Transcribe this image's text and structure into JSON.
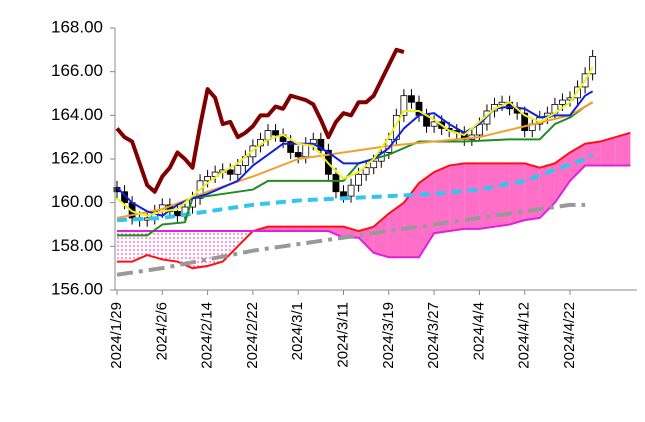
{
  "chart_data": {
    "type": "candlestick",
    "categories": [
      "2024/1/29",
      null,
      null,
      null,
      null,
      null,
      "2024/2/6",
      null,
      null,
      null,
      null,
      null,
      "2024/2/14",
      null,
      null,
      null,
      null,
      null,
      "2024/2/22",
      null,
      null,
      null,
      null,
      null,
      "2024/3/1",
      null,
      null,
      null,
      null,
      null,
      "2024/3/11",
      null,
      null,
      null,
      null,
      null,
      "2024/3/19",
      null,
      null,
      null,
      null,
      null,
      "2024/3/27",
      null,
      null,
      null,
      null,
      null,
      "2024/4/4",
      null,
      null,
      null,
      null,
      null,
      "2024/4/12",
      null,
      null,
      null,
      null,
      null,
      "2024/4/22",
      null,
      null,
      null,
      null,
      null,
      null,
      null,
      null
    ],
    "ylim": [
      156,
      168
    ],
    "yticks": [
      {
        "value": 156,
        "label": "156.00"
      },
      {
        "value": 158,
        "label": "158.00"
      },
      {
        "value": 160,
        "label": "160.00"
      },
      {
        "value": 162,
        "label": "162.00"
      },
      {
        "value": 164,
        "label": "164.00"
      },
      {
        "value": 166,
        "label": "166.00"
      },
      {
        "value": 168,
        "label": "168.00"
      }
    ],
    "grid": false,
    "candles": {
      "up_color": "#ffffff",
      "down_color": "#000000",
      "open": [
        160.7,
        160.5,
        160.0,
        159.3,
        159.2,
        159.3,
        159.6,
        159.9,
        159.6,
        159.4,
        159.8,
        160.2,
        161.0,
        161.2,
        161.4,
        161.5,
        161.3,
        161.7,
        162.1,
        162.6,
        162.9,
        163.3,
        163.1,
        162.8,
        162.3,
        162.1,
        162.7,
        162.9,
        162.4,
        161.3,
        160.5,
        160.3,
        160.8,
        161.3,
        161.6,
        161.9,
        162.3,
        162.9,
        164.0,
        164.9,
        164.6,
        164.0,
        163.5,
        163.7,
        163.4,
        163.3,
        163.2,
        162.9,
        163.1,
        163.6,
        164.2,
        164.5,
        164.6,
        164.3,
        164.1,
        163.3,
        163.6,
        163.9,
        164.1,
        164.5,
        164.7,
        164.8,
        165.3,
        165.9
      ],
      "high": [
        161.0,
        160.8,
        160.3,
        159.6,
        159.6,
        159.9,
        160.2,
        160.2,
        159.9,
        160.1,
        160.5,
        161.3,
        161.5,
        161.7,
        161.8,
        161.8,
        162.0,
        162.4,
        162.9,
        163.2,
        163.6,
        163.6,
        163.4,
        163.1,
        162.6,
        163.0,
        163.2,
        163.2,
        162.7,
        161.6,
        160.8,
        161.1,
        161.6,
        161.9,
        162.2,
        162.6,
        163.2,
        164.3,
        165.2,
        165.2,
        164.9,
        164.3,
        164.0,
        164.0,
        163.7,
        163.6,
        163.5,
        163.4,
        163.9,
        164.5,
        164.8,
        164.9,
        164.9,
        164.6,
        164.4,
        163.9,
        164.2,
        164.4,
        164.8,
        165.0,
        165.1,
        165.6,
        166.2,
        167.0
      ],
      "low": [
        160.2,
        159.7,
        159.0,
        158.9,
        158.9,
        159.0,
        159.3,
        159.3,
        159.1,
        159.1,
        159.5,
        159.9,
        160.7,
        160.9,
        161.1,
        161.0,
        161.0,
        161.4,
        161.8,
        162.3,
        162.6,
        162.8,
        162.5,
        162.0,
        161.8,
        161.8,
        162.4,
        162.1,
        161.0,
        160.2,
        160.0,
        160.0,
        160.5,
        161.0,
        161.3,
        161.6,
        162.0,
        162.6,
        163.7,
        164.3,
        163.7,
        163.2,
        163.2,
        163.1,
        163.0,
        162.9,
        162.6,
        162.6,
        162.8,
        163.3,
        163.9,
        164.2,
        164.0,
        163.8,
        163.0,
        163.0,
        163.3,
        163.6,
        163.8,
        164.2,
        164.4,
        164.5,
        165.0,
        165.6
      ],
      "close": [
        160.5,
        160.0,
        159.3,
        159.2,
        159.3,
        159.6,
        159.9,
        159.6,
        159.4,
        159.8,
        160.2,
        161.0,
        161.2,
        161.4,
        161.5,
        161.3,
        161.7,
        162.1,
        162.6,
        162.9,
        163.3,
        163.1,
        162.8,
        162.3,
        162.1,
        162.7,
        162.9,
        162.4,
        161.3,
        160.5,
        160.3,
        160.8,
        161.3,
        161.6,
        161.9,
        162.3,
        162.9,
        164.0,
        164.9,
        164.6,
        164.0,
        163.5,
        163.7,
        163.4,
        163.3,
        163.2,
        162.9,
        163.1,
        163.6,
        164.2,
        164.5,
        164.6,
        164.3,
        164.1,
        163.3,
        163.6,
        163.9,
        164.1,
        164.5,
        164.7,
        164.8,
        165.3,
        165.9,
        166.7
      ]
    },
    "cloud": {
      "up_color": "#ff6fc8",
      "down_color": "#ff6fc8",
      "x": [
        0,
        2,
        4,
        6,
        8,
        10,
        12,
        14,
        16,
        18,
        20,
        22,
        24,
        26,
        28,
        30,
        32,
        34,
        36,
        38,
        40,
        42,
        44,
        46,
        48,
        50,
        52,
        54,
        56,
        58,
        60,
        62,
        64,
        66,
        68
      ],
      "span_a": {
        "color": "#ff1010",
        "values": [
          157.3,
          157.3,
          157.6,
          157.4,
          157.3,
          157.0,
          157.1,
          157.3,
          158.0,
          158.7,
          158.9,
          158.9,
          158.9,
          158.9,
          158.9,
          158.9,
          158.7,
          158.9,
          159.5,
          160.0,
          160.9,
          161.4,
          161.7,
          161.8,
          161.8,
          161.8,
          161.8,
          161.8,
          161.6,
          161.8,
          162.3,
          162.7,
          162.8,
          163.0,
          163.2
        ]
      },
      "span_b": {
        "color": "#e020e0",
        "values": [
          158.7,
          158.7,
          158.7,
          158.7,
          158.7,
          158.7,
          158.7,
          158.7,
          158.7,
          158.7,
          158.7,
          158.7,
          158.7,
          158.7,
          158.7,
          158.4,
          158.4,
          157.7,
          157.5,
          157.5,
          157.5,
          158.6,
          158.7,
          158.8,
          158.8,
          158.9,
          159.0,
          159.2,
          159.3,
          160.0,
          161.0,
          161.7,
          161.7,
          161.7,
          161.7
        ]
      }
    },
    "series": [
      {
        "color": "#999999",
        "width": 4,
        "style": "dashdot",
        "x": [
          0,
          6,
          12,
          18,
          24,
          30,
          36,
          42,
          48,
          54,
          60,
          62
        ],
        "values": [
          156.7,
          157.0,
          157.4,
          157.8,
          158.1,
          158.4,
          158.7,
          159.0,
          159.3,
          159.6,
          159.9,
          159.9
        ]
      },
      {
        "color": "#33c5f0",
        "width": 4,
        "style": "dashed",
        "x": [
          0,
          6,
          12,
          18,
          24,
          30,
          36,
          42,
          48,
          54,
          58,
          62,
          63
        ],
        "values": [
          159.2,
          159.3,
          159.6,
          159.9,
          160.1,
          160.2,
          160.3,
          160.4,
          160.6,
          161.0,
          161.5,
          162.0,
          162.2
        ]
      },
      {
        "color": "#228b22",
        "width": 2,
        "style": "solid",
        "x": [
          0,
          4,
          6,
          9,
          10,
          14,
          18,
          20,
          24,
          28,
          30,
          32,
          36,
          40,
          46,
          52,
          56,
          58,
          60,
          62,
          63
        ],
        "values": [
          158.5,
          158.5,
          159.0,
          159.1,
          160.2,
          160.4,
          160.6,
          161.0,
          161.0,
          161.0,
          161.0,
          161.8,
          162.2,
          162.8,
          162.8,
          162.9,
          162.9,
          163.6,
          163.9,
          164.4,
          164.6
        ]
      },
      {
        "color": "#f0a030",
        "width": 2,
        "style": "solid",
        "x": [
          0,
          6,
          12,
          18,
          24,
          30,
          36,
          42,
          48,
          54,
          60,
          63
        ],
        "values": [
          159.3,
          159.7,
          160.5,
          161.2,
          162.0,
          162.3,
          162.6,
          162.8,
          163.0,
          163.5,
          164.0,
          164.6
        ]
      },
      {
        "color": "#1020e0",
        "width": 2,
        "style": "solid",
        "x": [
          0,
          2,
          4,
          6,
          8,
          10,
          12,
          14,
          16,
          18,
          20,
          22,
          24,
          26,
          28,
          30,
          32,
          34,
          36,
          38,
          40,
          42,
          44,
          46,
          48,
          50,
          52,
          54,
          56,
          58,
          60,
          62,
          63
        ],
        "values": [
          160.7,
          160.0,
          159.6,
          159.4,
          159.9,
          160.2,
          160.4,
          160.7,
          161.0,
          161.7,
          162.2,
          162.7,
          162.7,
          162.7,
          162.3,
          161.8,
          161.8,
          162.0,
          162.5,
          163.4,
          164.0,
          164.1,
          163.6,
          163.2,
          163.6,
          164.3,
          164.4,
          164.3,
          163.9,
          164.0,
          164.0,
          164.9,
          165.1
        ]
      },
      {
        "color": "#f0f020",
        "width": 2,
        "style": "solid",
        "x": [
          0,
          2,
          4,
          6,
          8,
          10,
          12,
          14,
          16,
          18,
          20,
          22,
          24,
          26,
          28,
          30,
          32,
          34,
          36,
          38,
          40,
          42,
          44,
          46,
          48,
          50,
          52,
          54,
          56,
          58,
          60,
          62,
          63
        ],
        "values": [
          160.2,
          159.6,
          159.4,
          159.6,
          159.7,
          160.3,
          160.9,
          161.4,
          161.8,
          162.4,
          162.9,
          163.1,
          162.7,
          162.6,
          161.8,
          161.1,
          161.4,
          162.0,
          163.0,
          164.2,
          164.2,
          163.8,
          163.3,
          163.1,
          163.7,
          164.3,
          164.6,
          164.0,
          163.7,
          164.1,
          164.6,
          165.6,
          166.2
        ]
      },
      {
        "color": "#800000",
        "width": 4,
        "style": "solid",
        "x": [
          0,
          1,
          2,
          3,
          4,
          5,
          6,
          7,
          8,
          9,
          10,
          11,
          12,
          13,
          14,
          15,
          16,
          17,
          18,
          19,
          20,
          21,
          22,
          23,
          24,
          25,
          26,
          27,
          28,
          29,
          30,
          31,
          32,
          33,
          34,
          35,
          36,
          37,
          38
        ],
        "values": [
          163.4,
          163.0,
          162.8,
          161.8,
          160.8,
          160.5,
          161.2,
          161.6,
          162.3,
          162.0,
          161.6,
          163.5,
          165.2,
          164.8,
          163.6,
          163.7,
          163.0,
          163.2,
          163.5,
          164.0,
          164.0,
          164.4,
          164.3,
          164.9,
          164.8,
          164.7,
          164.5,
          163.8,
          163.0,
          163.7,
          164.1,
          164.0,
          164.6,
          164.6,
          164.9,
          165.6,
          166.3,
          167.0,
          166.9
        ]
      }
    ]
  }
}
